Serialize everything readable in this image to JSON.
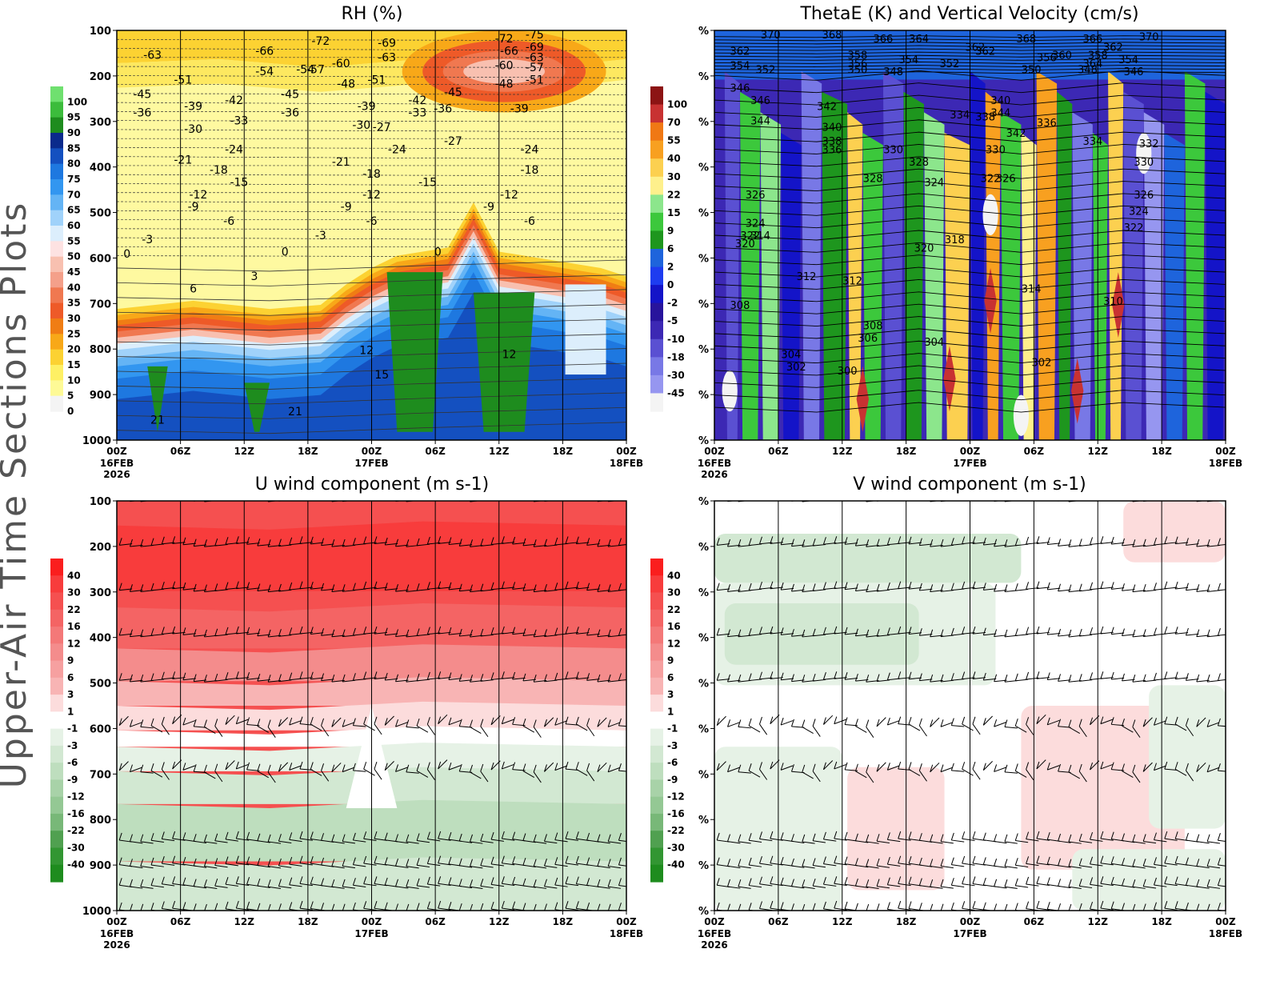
{
  "side_title": "Upper-Air Time Sections Plots",
  "chart_data": [
    {
      "type": "heatmap",
      "id": "rh",
      "title": "RH (%)",
      "xlabel": "",
      "ylabel": "",
      "x_ticks": [
        "00Z",
        "06Z",
        "12Z",
        "18Z",
        "00Z",
        "06Z",
        "12Z",
        "18Z",
        "00Z"
      ],
      "x_dates": [
        "16FEB",
        "",
        "",
        "",
        "17FEB",
        "",
        "",
        "",
        "18FEB"
      ],
      "x_year": "2026",
      "y_ticks": [
        "100",
        "200",
        "300",
        "400",
        "500",
        "600",
        "700",
        "800",
        "900",
        "1000"
      ],
      "ylim": [
        1000,
        100
      ],
      "colorbar": {
        "labels": [
          "100",
          "95",
          "90",
          "85",
          "80",
          "75",
          "70",
          "65",
          "60",
          "55",
          "50",
          "45",
          "40",
          "35",
          "30",
          "25",
          "20",
          "15",
          "10",
          "5",
          "0"
        ],
        "colors": [
          "#6fe06f",
          "#3cbc3c",
          "#1e8c1e",
          "#0a2a8c",
          "#1450c0",
          "#1e78e0",
          "#3296f0",
          "#64b4f5",
          "#a0d2fa",
          "#dceefc",
          "#fde2e2",
          "#f8c0b0",
          "#f4a08a",
          "#f07850",
          "#ee5a28",
          "#f07d14",
          "#f8a818",
          "#fcd232",
          "#fef064",
          "#fefa96",
          "#f4f4f4"
        ]
      },
      "contour_labels": [
        "-63",
        "-66",
        "-72",
        "-69",
        "-63",
        "-72",
        "-75",
        "-66",
        "-69",
        "-60",
        "-63",
        "-54",
        "-57",
        "-51",
        "-48",
        "-51",
        "-54",
        "-57",
        "-60",
        "-48",
        "-51",
        "-45",
        "-45",
        "-39",
        "-36",
        "-42",
        "-33",
        "-39",
        "-42",
        "-36",
        "-33",
        "-36",
        "-45",
        "-39",
        "-30",
        "-27",
        "-30",
        "-27",
        "-24",
        "-21",
        "-24",
        "-21",
        "-24",
        "-18",
        "-15",
        "-18",
        "-15",
        "-18",
        "-12",
        "-9",
        "-9",
        "-12",
        "-12",
        "-9",
        "-6",
        "-6",
        "-6",
        "-3",
        "-3",
        "0",
        "0",
        "0",
        "3",
        "6",
        "12",
        "12",
        "15",
        "21",
        "21"
      ],
      "source": ""
    },
    {
      "type": "heatmap",
      "id": "thetae",
      "title": "ThetaE (K) and Vertical Velocity (cm/s)",
      "x_ticks": [
        "00Z",
        "06Z",
        "12Z",
        "18Z",
        "00Z",
        "06Z",
        "12Z",
        "18Z",
        "00Z"
      ],
      "x_dates": [
        "16FEB",
        "",
        "",
        "",
        "17FEB",
        "",
        "",
        "",
        "18FEB"
      ],
      "x_year": "2026",
      "y_ticks": [
        "%",
        "%",
        "%",
        "%",
        "%",
        "%",
        "%",
        "%",
        "%",
        "%"
      ],
      "colorbar": {
        "labels": [
          "100",
          "70",
          "55",
          "40",
          "30",
          "22",
          "15",
          "9",
          "6",
          "2",
          "0",
          "-2",
          "-5",
          "-10",
          "-18",
          "-30",
          "-45"
        ],
        "colors": [
          "#8c1414",
          "#c83232",
          "#f07814",
          "#f8a020",
          "#fcd050",
          "#fef08c",
          "#8ce68c",
          "#3cc83c",
          "#1e961e",
          "#1e64dc",
          "#1e3cf0",
          "#1414c8",
          "#28149c",
          "#3c28b4",
          "#5a50d2",
          "#7878e6",
          "#9696f0",
          "#f4f4f4"
        ]
      },
      "contour_labels": [
        "370",
        "368",
        "366",
        "364",
        "362",
        "362",
        "358",
        "356",
        "354",
        "352",
        "354",
        "350",
        "348",
        "362",
        "360",
        "352",
        "368",
        "366",
        "358",
        "364",
        "356",
        "362",
        "354",
        "370",
        "350",
        "348",
        "346",
        "346",
        "346",
        "344",
        "342",
        "340",
        "338",
        "336",
        "334",
        "340",
        "344",
        "342",
        "338",
        "336",
        "334",
        "332",
        "330",
        "330",
        "328",
        "326",
        "324",
        "322",
        "328",
        "326",
        "324",
        "322",
        "320",
        "318",
        "320",
        "314",
        "312",
        "312",
        "314",
        "310",
        "308",
        "308",
        "306",
        "304",
        "304",
        "302",
        "302",
        "300",
        "330",
        "326",
        "324",
        "322"
      ]
    },
    {
      "type": "heatmap",
      "id": "uwind",
      "title": "U wind component (m s-1)",
      "x_ticks": [
        "00Z",
        "06Z",
        "12Z",
        "18Z",
        "00Z",
        "06Z",
        "12Z",
        "18Z",
        "00Z"
      ],
      "x_dates": [
        "16FEB",
        "",
        "",
        "",
        "17FEB",
        "",
        "",
        "",
        "18FEB"
      ],
      "x_year": "2026",
      "y_ticks": [
        "100",
        "200",
        "300",
        "400",
        "500",
        "600",
        "700",
        "800",
        "900",
        "1000"
      ],
      "colorbar": {
        "labels": [
          "40",
          "30",
          "22",
          "16",
          "12",
          "9",
          "6",
          "3",
          "1",
          "-1",
          "-3",
          "-6",
          "-9",
          "-12",
          "-16",
          "-22",
          "-30",
          "-40"
        ],
        "colors": [
          "#fa1e1e",
          "#f83c3c",
          "#f55050",
          "#f46464",
          "#f47878",
          "#f48c8c",
          "#f6a0a0",
          "#f8b4b4",
          "#fcdcdc",
          "#ffffff",
          "#e6f2e6",
          "#d2e8d2",
          "#bedebe",
          "#a8d2a8",
          "#94c894",
          "#78b878",
          "#50a050",
          "#329632",
          "#1e8c1e"
        ]
      }
    },
    {
      "type": "heatmap",
      "id": "vwind",
      "title": "V wind component (m s-1)",
      "x_ticks": [
        "00Z",
        "06Z",
        "12Z",
        "18Z",
        "00Z",
        "06Z",
        "12Z",
        "18Z",
        "00Z"
      ],
      "x_dates": [
        "16FEB",
        "",
        "",
        "",
        "17FEB",
        "",
        "",
        "",
        "18FEB"
      ],
      "x_year": "2026",
      "y_ticks": [
        "%",
        "%",
        "%",
        "%",
        "%",
        "%",
        "%",
        "%",
        "%",
        "%"
      ],
      "colorbar": {
        "labels": [
          "40",
          "30",
          "22",
          "16",
          "12",
          "9",
          "6",
          "3",
          "1",
          "-1",
          "-3",
          "-6",
          "-9",
          "-12",
          "-16",
          "-22",
          "-30",
          "-40"
        ],
        "colors": [
          "#fa1e1e",
          "#f83c3c",
          "#f55050",
          "#f46464",
          "#f47878",
          "#f48c8c",
          "#f6a0a0",
          "#f8b4b4",
          "#fcdcdc",
          "#ffffff",
          "#e6f2e6",
          "#d2e8d2",
          "#bedebe",
          "#a8d2a8",
          "#94c894",
          "#78b878",
          "#50a050",
          "#329632",
          "#1e8c1e"
        ]
      }
    }
  ]
}
